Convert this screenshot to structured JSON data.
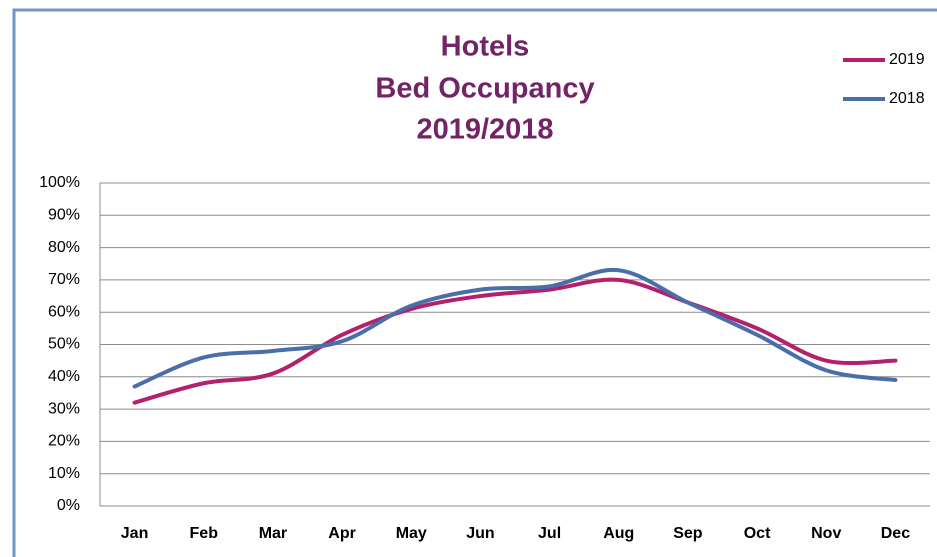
{
  "chart_data": {
    "type": "line",
    "title": [
      "Hotels",
      "Bed Occupancy",
      "2019/2018"
    ],
    "categories": [
      "Jan",
      "Feb",
      "Mar",
      "Apr",
      "May",
      "Jun",
      "Jul",
      "Aug",
      "Sep",
      "Oct",
      "Nov",
      "Dec"
    ],
    "series": [
      {
        "name": "2019",
        "color": "#b3206c",
        "values": [
          32,
          38,
          41,
          53,
          61,
          65,
          67,
          70,
          63,
          55,
          45,
          45
        ]
      },
      {
        "name": "2018",
        "color": "#4a6ea8",
        "values": [
          37,
          46,
          48,
          51,
          62,
          67,
          68,
          73,
          63,
          53,
          42,
          39
        ]
      }
    ],
    "ylim": [
      0,
      100
    ],
    "yticks": [
      {
        "value": 0,
        "label": "0%"
      },
      {
        "value": 10,
        "label": "10%"
      },
      {
        "value": 20,
        "label": "20%"
      },
      {
        "value": 30,
        "label": "30%"
      },
      {
        "value": 40,
        "label": "40%"
      },
      {
        "value": 50,
        "label": "50%"
      },
      {
        "value": 60,
        "label": "60%"
      },
      {
        "value": 70,
        "label": "70%"
      },
      {
        "value": 80,
        "label": "80%"
      },
      {
        "value": 90,
        "label": "90%"
      },
      {
        "value": 100,
        "label": "100%"
      }
    ],
    "grid": true,
    "legend": "top-right"
  }
}
